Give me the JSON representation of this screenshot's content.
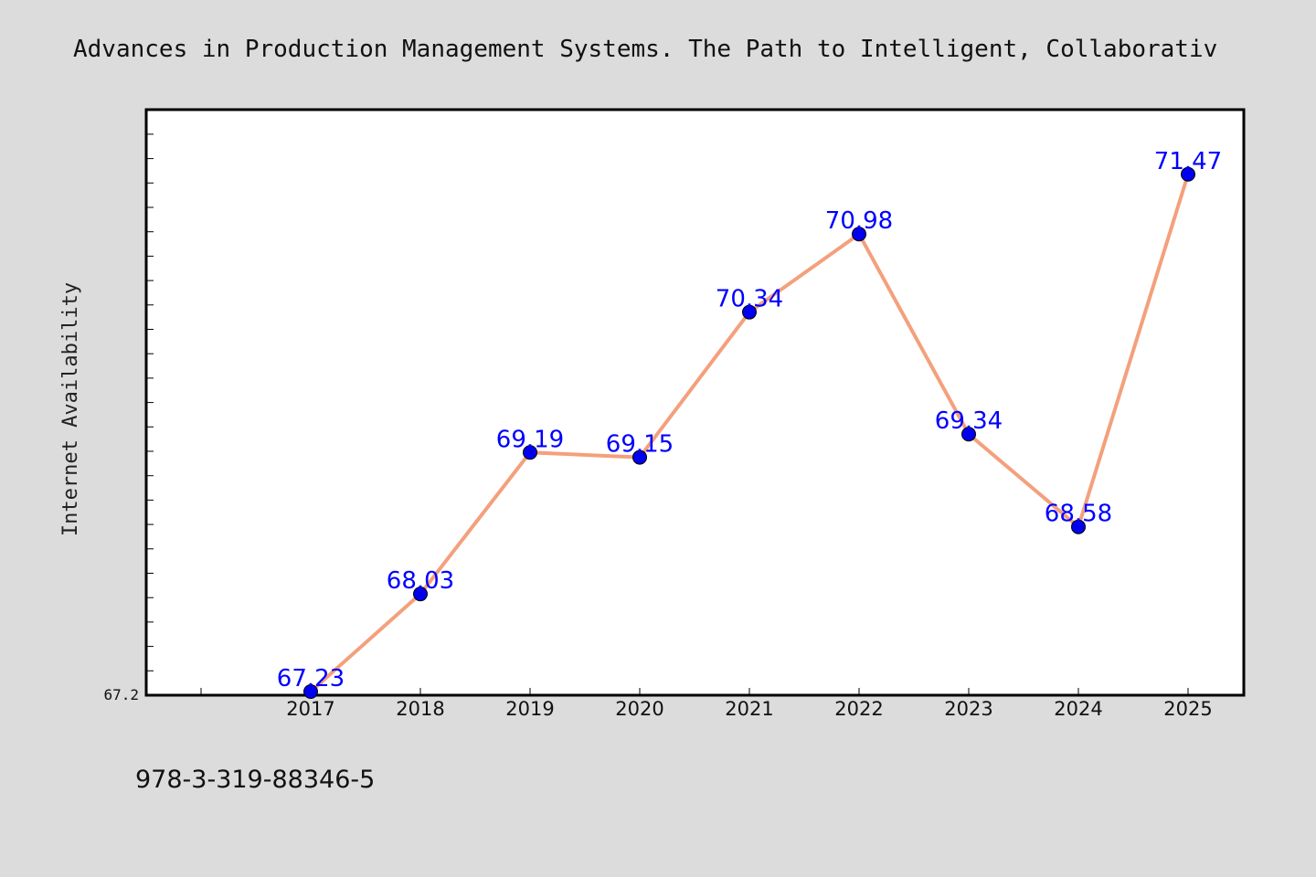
{
  "page": {
    "footnote": "978-3-319-88346-5"
  },
  "colors": {
    "background": "#dcdcdc",
    "plot_background": "#ffffff",
    "line": "#f4a07c",
    "marker": "#0000ee",
    "data_label": "#0000ff"
  },
  "chart_data": {
    "type": "line",
    "title": "Advances in Production Management Systems. The Path to Intelligent, Collaborativ",
    "xlabel": "",
    "ylabel": "Internet Availability",
    "categories": [
      "2017",
      "2018",
      "2019",
      "2020",
      "2021",
      "2022",
      "2023",
      "2024",
      "2025"
    ],
    "series": [
      {
        "values": [
          67.23,
          68.03,
          69.19,
          69.15,
          70.34,
          70.98,
          69.34,
          68.58,
          71.47
        ]
      }
    ],
    "data_labels": [
      "67.23",
      "68.03",
      "69.19",
      "69.15",
      "70.34",
      "70.98",
      "69.34",
      "68.58",
      "71.47"
    ],
    "ylim": [
      67.2,
      72.0
    ],
    "y_tick_labels": [
      "67.2"
    ],
    "grid": false,
    "legend": "none"
  }
}
